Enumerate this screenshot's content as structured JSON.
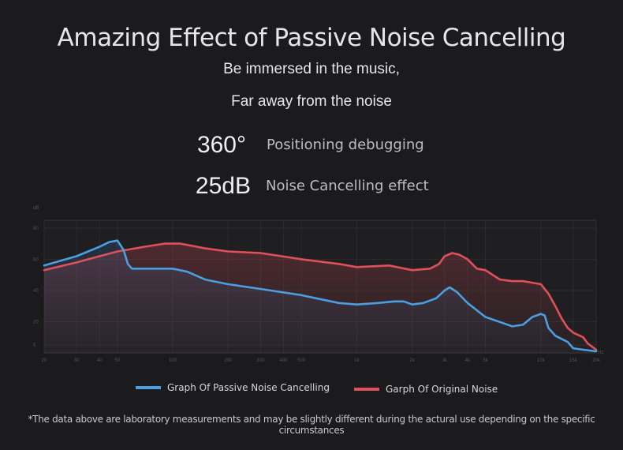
{
  "header": {
    "title": "Amazing Effect of Passive Noise Cancelling",
    "line1": "Be  immersed in the music,",
    "line2": "Far away from the noise"
  },
  "stats": [
    {
      "value": "360°",
      "label": "Positioning debugging"
    },
    {
      "value": "25dB",
      "label": "Noise Cancelling effect"
    }
  ],
  "colors": {
    "passive": "#4a9fe0",
    "original": "#e0505a",
    "background": "#1b1b1d"
  },
  "chart_data": {
    "type": "line",
    "xscale": "log",
    "xlim": [
      20,
      20000
    ],
    "ylim": [
      5,
      80
    ],
    "ylabel": "dB",
    "xunit": "Hz",
    "y_ticks": [
      "80",
      "60",
      "40",
      "20",
      "5"
    ],
    "x_ticks": [
      "20",
      "30",
      "40",
      "50",
      "100",
      "200",
      "300",
      "400",
      "500",
      "1k",
      "2k",
      "3k",
      "4k",
      "5k",
      "10k",
      "15k",
      "20k"
    ],
    "legend_position": "bottom",
    "grid": true,
    "series": [
      {
        "name": "Graph Of Passive Noise Cancelling",
        "color": "#4a9fe0",
        "points": [
          [
            20,
            56
          ],
          [
            30,
            62
          ],
          [
            40,
            68
          ],
          [
            45,
            71
          ],
          [
            50,
            72
          ],
          [
            54,
            66
          ],
          [
            57,
            57
          ],
          [
            60,
            54
          ],
          [
            80,
            54
          ],
          [
            100,
            54
          ],
          [
            120,
            52
          ],
          [
            150,
            47
          ],
          [
            200,
            44
          ],
          [
            300,
            41
          ],
          [
            500,
            37
          ],
          [
            600,
            35
          ],
          [
            800,
            32
          ],
          [
            1000,
            31
          ],
          [
            1300,
            32
          ],
          [
            1600,
            33
          ],
          [
            1800,
            33
          ],
          [
            2000,
            31
          ],
          [
            2300,
            32
          ],
          [
            2700,
            35
          ],
          [
            3000,
            40
          ],
          [
            3200,
            42
          ],
          [
            3500,
            39
          ],
          [
            4000,
            32
          ],
          [
            5000,
            23
          ],
          [
            7000,
            17
          ],
          [
            8000,
            18
          ],
          [
            9000,
            23
          ],
          [
            10000,
            25
          ],
          [
            10500,
            24
          ],
          [
            11000,
            16
          ],
          [
            12000,
            11
          ],
          [
            14000,
            7
          ],
          [
            15000,
            3
          ],
          [
            17000,
            2
          ],
          [
            20000,
            1
          ]
        ]
      },
      {
        "name": "Garph Of Original Noise",
        "color": "#e0505a",
        "points": [
          [
            20,
            53
          ],
          [
            30,
            58
          ],
          [
            40,
            62
          ],
          [
            50,
            65
          ],
          [
            70,
            68
          ],
          [
            90,
            70
          ],
          [
            110,
            70
          ],
          [
            150,
            67
          ],
          [
            200,
            65
          ],
          [
            300,
            64
          ],
          [
            500,
            60
          ],
          [
            800,
            57
          ],
          [
            1000,
            55
          ],
          [
            1500,
            56
          ],
          [
            2000,
            53
          ],
          [
            2500,
            54
          ],
          [
            2800,
            57
          ],
          [
            3000,
            62
          ],
          [
            3300,
            64
          ],
          [
            3600,
            63
          ],
          [
            4000,
            60
          ],
          [
            4500,
            54
          ],
          [
            5000,
            53
          ],
          [
            6000,
            47
          ],
          [
            7000,
            46
          ],
          [
            8000,
            46
          ],
          [
            9000,
            45
          ],
          [
            10000,
            44
          ],
          [
            11000,
            38
          ],
          [
            12000,
            30
          ],
          [
            13000,
            22
          ],
          [
            14000,
            16
          ],
          [
            15000,
            13
          ],
          [
            17000,
            10
          ],
          [
            18000,
            6
          ],
          [
            20000,
            2
          ]
        ]
      }
    ]
  },
  "legend": {
    "passive": "Graph Of Passive Noise Cancelling",
    "original": "Garph Of Original Noise"
  },
  "footnote": "*The data above are laboratory measurements and may be slightly different during the actural use depending on the specific circumstances"
}
